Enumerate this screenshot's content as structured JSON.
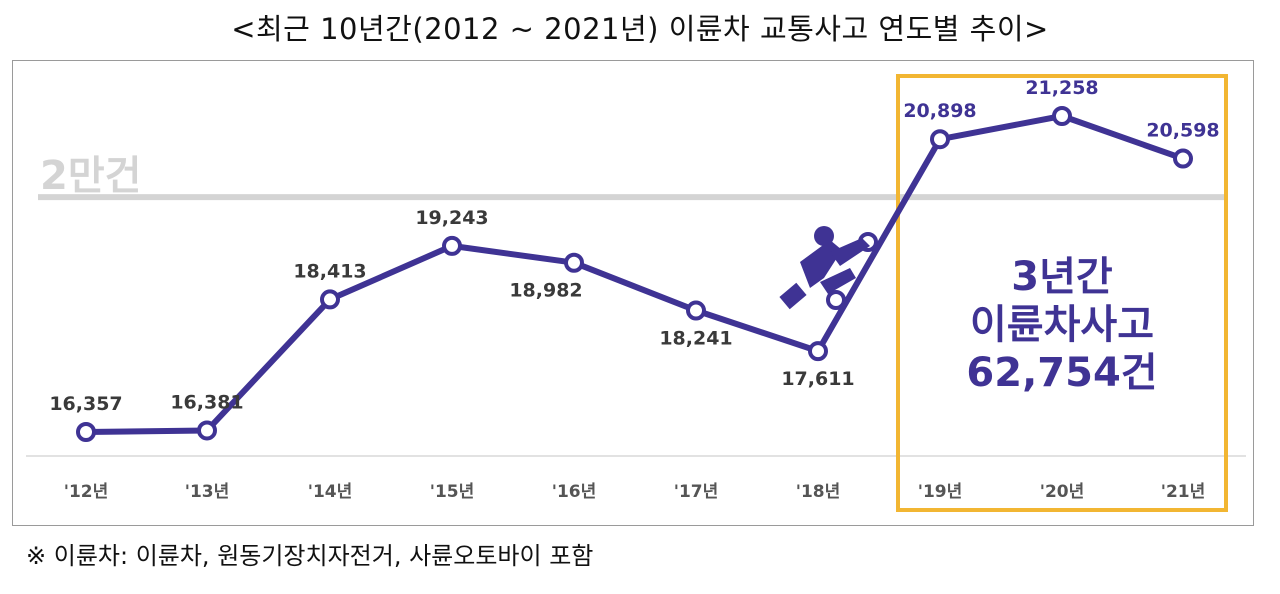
{
  "title": "<최근 10년간(2012 ~ 2021년) 이륜차 교통사고 연도별 추이>",
  "footnote": "※ 이륜차: 이륜차, 원동기장치자전거, 사륜오토바이 포함",
  "reference_label": "2만건",
  "highlight_text": [
    "3년간",
    "이륜차사고",
    "62,754건"
  ],
  "icon": "scooter-icon",
  "colors": {
    "line": "#3f3394",
    "highlight": "#f2b632",
    "reference": "#d4d4d4",
    "text": "#3a3a3a"
  },
  "chart_data": {
    "type": "line",
    "categories": [
      "'12년",
      "'13년",
      "'14년",
      "'15년",
      "'16년",
      "'17년",
      "'18년",
      "'19년",
      "'20년",
      "'21년"
    ],
    "values": [
      16357,
      16381,
      18413,
      19243,
      18982,
      18241,
      17611,
      20898,
      21258,
      20598
    ],
    "data_labels": [
      "16,357",
      "16,381",
      "18,413",
      "19,243",
      "18,982",
      "18,241",
      "17,611",
      "20,898",
      "21,258",
      "20,598"
    ],
    "reference_line": 20000,
    "highlight_range": [
      "'19년",
      "'21년"
    ],
    "ylim": [
      15500,
      21800
    ],
    "grid": false,
    "title": "",
    "xlabel": "",
    "ylabel": ""
  }
}
